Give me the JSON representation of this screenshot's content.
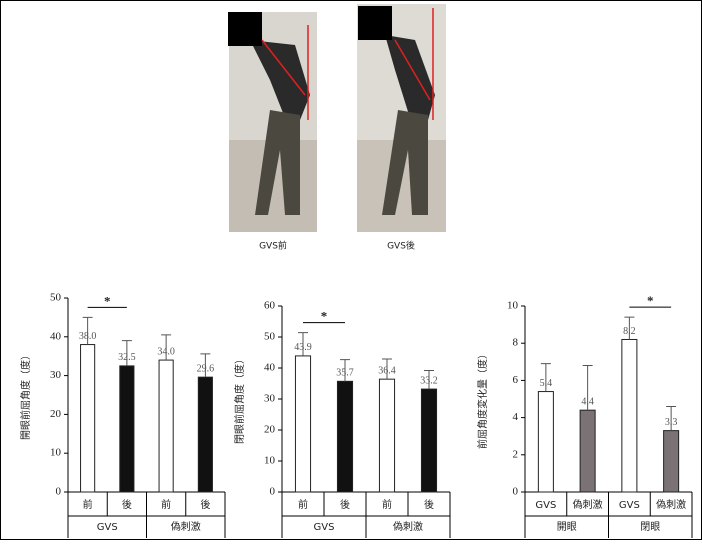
{
  "photos": {
    "captions": [
      "GVS前",
      "GVS後"
    ]
  },
  "chart_data": [
    {
      "type": "bar",
      "ylabel": "開眼前屈角度（度）",
      "ylim": [
        0,
        50
      ],
      "yticks": [
        0,
        10,
        20,
        30,
        40,
        50
      ],
      "categories": [
        "前",
        "後",
        "前",
        "後"
      ],
      "groups": [
        "GVS",
        "偽刺激"
      ],
      "values": [
        38.0,
        32.5,
        34.0,
        29.6
      ],
      "value_labels": [
        "38.0",
        "32.5",
        "34.0",
        "29.6"
      ],
      "errors": [
        7,
        6.5,
        6.5,
        6
      ],
      "colors": [
        "#ffffff",
        "#111111",
        "#ffffff",
        "#111111"
      ],
      "significance": [
        {
          "label": "*",
          "bars": [
            0,
            1
          ]
        }
      ]
    },
    {
      "type": "bar",
      "ylabel": "閉眼前屈角度（度）",
      "ylim": [
        0,
        60
      ],
      "yticks": [
        0,
        10,
        20,
        30,
        40,
        50,
        60
      ],
      "categories": [
        "前",
        "後",
        "前",
        "後"
      ],
      "groups": [
        "GVS",
        "偽刺激"
      ],
      "values": [
        43.9,
        35.7,
        36.4,
        33.2
      ],
      "value_labels": [
        "43.9",
        "35.7",
        "36.4",
        "33.2"
      ],
      "errors": [
        7.5,
        7,
        6.5,
        6
      ],
      "colors": [
        "#ffffff",
        "#111111",
        "#ffffff",
        "#111111"
      ],
      "significance": [
        {
          "label": "*",
          "bars": [
            0,
            1
          ]
        }
      ]
    },
    {
      "type": "bar",
      "ylabel": "前屈角度変化量（度）",
      "ylim": [
        0,
        10
      ],
      "yticks": [
        0,
        2,
        4,
        6,
        8,
        10
      ],
      "categories": [
        "GVS",
        "偽刺激",
        "GVS",
        "偽刺激"
      ],
      "groups": [
        "開眼",
        "閉眼"
      ],
      "values": [
        5.4,
        4.4,
        8.2,
        3.3
      ],
      "value_labels": [
        "5.4",
        "4.4",
        "8.2",
        "3.3"
      ],
      "errors": [
        1.5,
        2.4,
        1.2,
        1.3
      ],
      "colors": [
        "#ffffff",
        "#7a7274",
        "#ffffff",
        "#7a7274"
      ],
      "significance": [
        {
          "label": "*",
          "bars": [
            2,
            3
          ]
        }
      ]
    }
  ]
}
